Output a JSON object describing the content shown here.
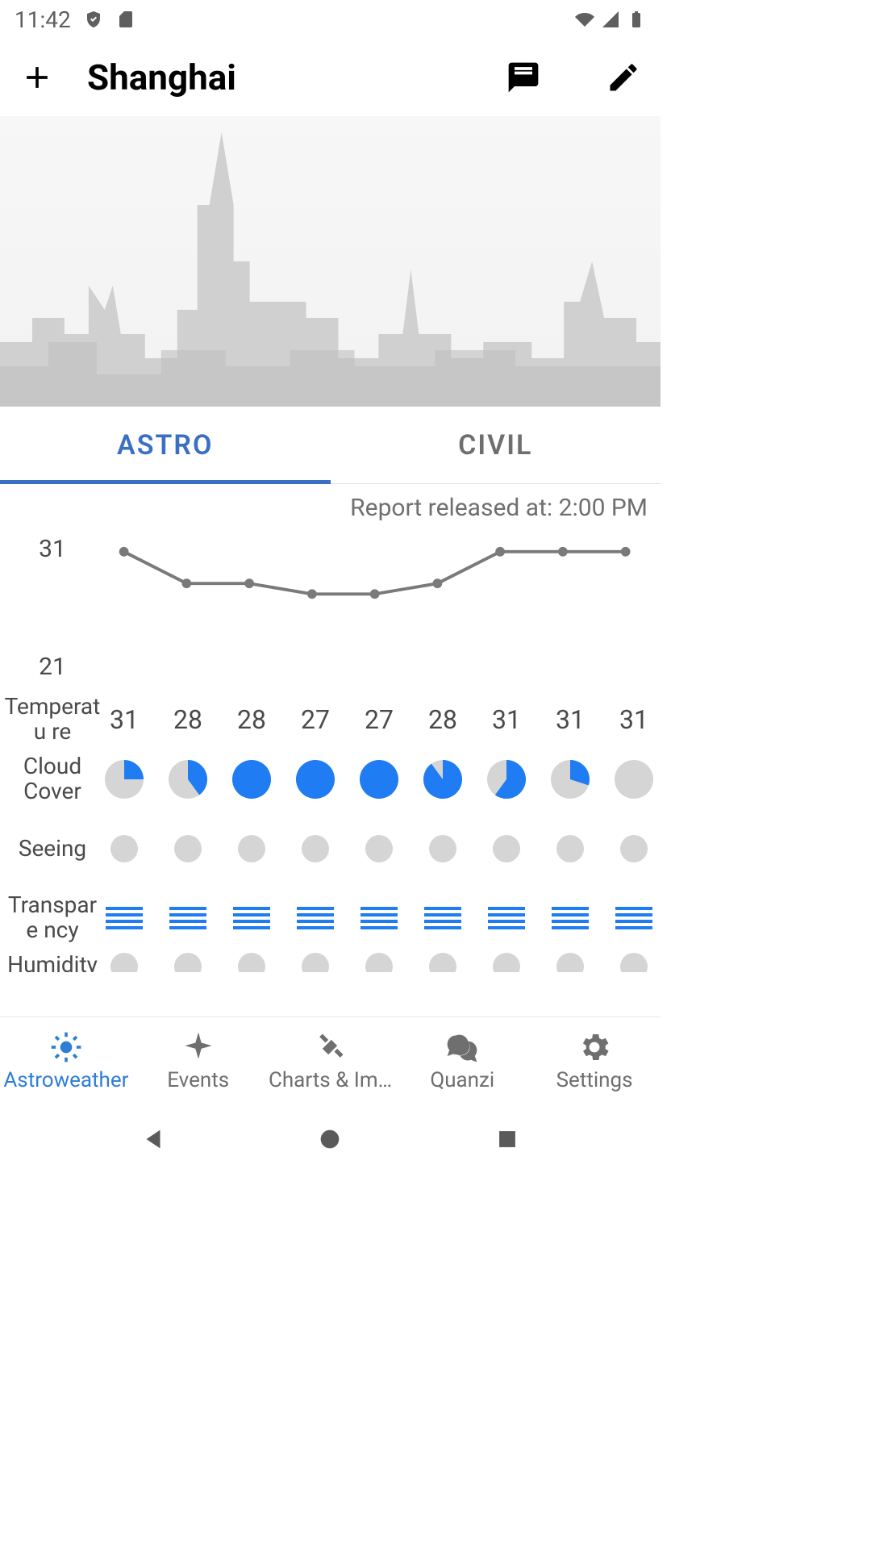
{
  "status": {
    "time": "11:42"
  },
  "header": {
    "title": "Shanghai"
  },
  "tabs": {
    "astro": "ASTRO",
    "civil": "CIVIL"
  },
  "report": {
    "released": "Report released at: 2:00 PM"
  },
  "chart": {
    "y_max_label": "31",
    "y_min_label": "21",
    "y_max": 32,
    "y_min": 20,
    "temperatures": [
      31,
      28,
      28,
      27,
      27,
      28,
      31,
      31,
      31
    ],
    "cloud_cover_pct": [
      25,
      40,
      100,
      100,
      100,
      90,
      60,
      30,
      0
    ],
    "line_color": "#7a7a7a",
    "point_color": "#7a7a7a",
    "colors": {
      "pie_bg": "#d5d5d5",
      "pie_fg": "#1f7cf3",
      "transparency": "#1f7cf3",
      "seeing": "#d5d5d5"
    }
  },
  "labels": {
    "temperature": "Temperatu re",
    "cloud_cover": "Cloud Cover",
    "seeing": "Seeing",
    "transparency": "Transpare ncy",
    "humidity": "Humidity"
  },
  "nav": {
    "astroweather": "Astroweather",
    "events": "Events",
    "charts": "Charts & Im…",
    "quanzi": "Quanzi",
    "settings": "Settings"
  }
}
